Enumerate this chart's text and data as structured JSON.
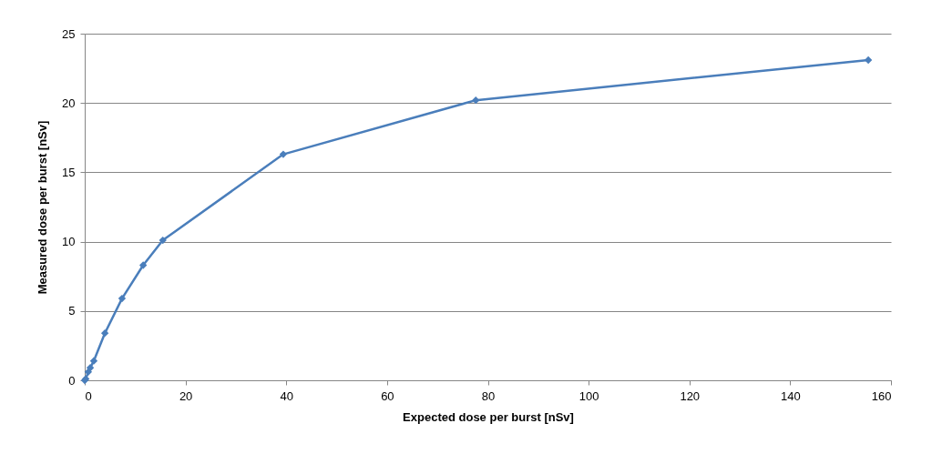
{
  "chart_data": {
    "type": "line",
    "xlabel": "Expected dose per burst [nSv]",
    "ylabel": "Measured dose per burst [nSv]",
    "x": [
      0,
      0.2,
      0.7,
      1.1,
      1.8,
      4.0,
      7.4,
      11.6,
      15.5,
      39.4,
      77.6,
      155.5
    ],
    "series": [
      {
        "color": "#4a7ebb",
        "values": [
          0,
          0.1,
          0.6,
          0.9,
          1.4,
          3.4,
          5.9,
          8.3,
          10.1,
          16.3,
          20.2,
          23.1
        ]
      }
    ],
    "xlim": [
      0,
      160
    ],
    "xticks": [
      0,
      20,
      40,
      60,
      80,
      100,
      120,
      140,
      160
    ],
    "ylim": [
      0,
      25
    ],
    "yticks": [
      0,
      5,
      10,
      15,
      20,
      25
    ],
    "grid": "y",
    "marker": "diamond",
    "line_style": "solid",
    "legend": false
  }
}
